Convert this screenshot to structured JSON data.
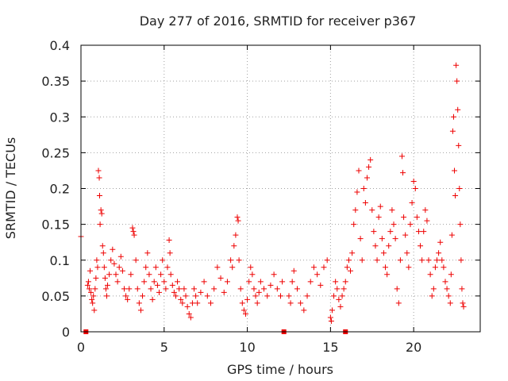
{
  "chart_data": {
    "type": "scatter",
    "title": "Day 277 of 2016, SRMTID for receiver p367",
    "xlabel": "GPS time / hours",
    "ylabel": "SRMTID / TECUs",
    "xlim": [
      0,
      24
    ],
    "ylim": [
      0,
      0.4
    ],
    "x_ticks": [
      0,
      5,
      10,
      15,
      20
    ],
    "y_ticks": [
      0,
      0.05,
      0.1,
      0.15,
      0.2,
      0.25,
      0.3,
      0.35,
      0.4
    ],
    "x_tick_labels": [
      "0",
      "5",
      "10",
      "15",
      "20"
    ],
    "y_tick_labels": [
      "0",
      "0.05",
      "0.1",
      "0.15",
      "0.2",
      "0.25",
      "0.3",
      "0.35",
      "0.4"
    ],
    "grid": true,
    "marker": "plus",
    "color": "#ee0000",
    "series": [
      {
        "name": "SRMTID",
        "points": [
          [
            0.0,
            0.133
          ],
          [
            0.4,
            0.065
          ],
          [
            0.45,
            0.07
          ],
          [
            0.5,
            0.06
          ],
          [
            0.55,
            0.085
          ],
          [
            0.6,
            0.055
          ],
          [
            0.65,
            0.045
          ],
          [
            0.7,
            0.04
          ],
          [
            0.75,
            0.05
          ],
          [
            0.8,
            0.03
          ],
          [
            0.85,
            0.06
          ],
          [
            0.9,
            0.075
          ],
          [
            0.95,
            0.1
          ],
          [
            1.0,
            0.09
          ],
          [
            1.05,
            0.225
          ],
          [
            1.1,
            0.215
          ],
          [
            1.12,
            0.19
          ],
          [
            1.15,
            0.15
          ],
          [
            1.2,
            0.17
          ],
          [
            1.25,
            0.165
          ],
          [
            1.3,
            0.12
          ],
          [
            1.35,
            0.11
          ],
          [
            1.4,
            0.09
          ],
          [
            1.45,
            0.075
          ],
          [
            1.5,
            0.06
          ],
          [
            1.55,
            0.05
          ],
          [
            1.6,
            0.065
          ],
          [
            1.7,
            0.08
          ],
          [
            1.8,
            0.1
          ],
          [
            1.9,
            0.115
          ],
          [
            2.0,
            0.095
          ],
          [
            2.1,
            0.08
          ],
          [
            2.2,
            0.07
          ],
          [
            2.3,
            0.09
          ],
          [
            2.4,
            0.105
          ],
          [
            2.5,
            0.085
          ],
          [
            2.6,
            0.06
          ],
          [
            2.7,
            0.05
          ],
          [
            2.8,
            0.045
          ],
          [
            2.9,
            0.06
          ],
          [
            3.0,
            0.08
          ],
          [
            3.1,
            0.145
          ],
          [
            3.15,
            0.14
          ],
          [
            3.2,
            0.135
          ],
          [
            3.3,
            0.1
          ],
          [
            3.4,
            0.06
          ],
          [
            3.5,
            0.04
          ],
          [
            3.6,
            0.03
          ],
          [
            3.7,
            0.05
          ],
          [
            3.8,
            0.07
          ],
          [
            3.9,
            0.09
          ],
          [
            4.0,
            0.11
          ],
          [
            4.1,
            0.08
          ],
          [
            4.2,
            0.06
          ],
          [
            4.3,
            0.045
          ],
          [
            4.4,
            0.07
          ],
          [
            4.5,
            0.09
          ],
          [
            4.6,
            0.065
          ],
          [
            4.7,
            0.055
          ],
          [
            4.8,
            0.08
          ],
          [
            4.9,
            0.1
          ],
          [
            5.0,
            0.07
          ],
          [
            5.1,
            0.06
          ],
          [
            5.2,
            0.09
          ],
          [
            5.3,
            0.128
          ],
          [
            5.35,
            0.11
          ],
          [
            5.4,
            0.08
          ],
          [
            5.5,
            0.065
          ],
          [
            5.6,
            0.055
          ],
          [
            5.7,
            0.05
          ],
          [
            5.8,
            0.07
          ],
          [
            5.9,
            0.06
          ],
          [
            6.0,
            0.045
          ],
          [
            6.1,
            0.04
          ],
          [
            6.2,
            0.06
          ],
          [
            6.3,
            0.05
          ],
          [
            6.4,
            0.035
          ],
          [
            6.5,
            0.025
          ],
          [
            6.6,
            0.02
          ],
          [
            6.7,
            0.04
          ],
          [
            6.8,
            0.06
          ],
          [
            6.9,
            0.05
          ],
          [
            7.0,
            0.04
          ],
          [
            7.2,
            0.055
          ],
          [
            7.4,
            0.07
          ],
          [
            7.6,
            0.05
          ],
          [
            7.8,
            0.04
          ],
          [
            8.0,
            0.06
          ],
          [
            8.2,
            0.09
          ],
          [
            8.4,
            0.075
          ],
          [
            8.6,
            0.055
          ],
          [
            8.8,
            0.07
          ],
          [
            9.0,
            0.1
          ],
          [
            9.1,
            0.09
          ],
          [
            9.2,
            0.12
          ],
          [
            9.3,
            0.135
          ],
          [
            9.4,
            0.16
          ],
          [
            9.45,
            0.155
          ],
          [
            9.5,
            0.1
          ],
          [
            9.6,
            0.06
          ],
          [
            9.7,
            0.04
          ],
          [
            9.8,
            0.03
          ],
          [
            9.9,
            0.025
          ],
          [
            10.0,
            0.045
          ],
          [
            10.1,
            0.07
          ],
          [
            10.2,
            0.09
          ],
          [
            10.3,
            0.08
          ],
          [
            10.4,
            0.06
          ],
          [
            10.5,
            0.05
          ],
          [
            10.6,
            0.04
          ],
          [
            10.7,
            0.055
          ],
          [
            10.8,
            0.07
          ],
          [
            11.0,
            0.06
          ],
          [
            11.2,
            0.05
          ],
          [
            11.4,
            0.065
          ],
          [
            11.6,
            0.08
          ],
          [
            11.8,
            0.06
          ],
          [
            12.0,
            0.05
          ],
          [
            12.1,
            0.07
          ],
          [
            12.5,
            0.05
          ],
          [
            12.6,
            0.04
          ],
          [
            12.7,
            0.07
          ],
          [
            12.8,
            0.085
          ],
          [
            13.0,
            0.06
          ],
          [
            13.2,
            0.04
          ],
          [
            13.4,
            0.03
          ],
          [
            13.6,
            0.05
          ],
          [
            13.8,
            0.07
          ],
          [
            14.0,
            0.09
          ],
          [
            14.2,
            0.08
          ],
          [
            14.4,
            0.065
          ],
          [
            14.6,
            0.09
          ],
          [
            14.8,
            0.1
          ],
          [
            15.0,
            0.02
          ],
          [
            15.05,
            0.015
          ],
          [
            15.1,
            0.03
          ],
          [
            15.2,
            0.05
          ],
          [
            15.3,
            0.07
          ],
          [
            15.4,
            0.06
          ],
          [
            15.5,
            0.045
          ],
          [
            15.6,
            0.035
          ],
          [
            15.7,
            0.05
          ],
          [
            15.8,
            0.06
          ],
          [
            15.9,
            0.07
          ],
          [
            16.0,
            0.09
          ],
          [
            16.1,
            0.1
          ],
          [
            16.2,
            0.085
          ],
          [
            16.3,
            0.11
          ],
          [
            16.4,
            0.15
          ],
          [
            16.5,
            0.17
          ],
          [
            16.6,
            0.195
          ],
          [
            16.7,
            0.225
          ],
          [
            16.8,
            0.13
          ],
          [
            16.9,
            0.1
          ],
          [
            17.0,
            0.2
          ],
          [
            17.1,
            0.18
          ],
          [
            17.2,
            0.215
          ],
          [
            17.3,
            0.23
          ],
          [
            17.4,
            0.24
          ],
          [
            17.5,
            0.17
          ],
          [
            17.6,
            0.14
          ],
          [
            17.7,
            0.12
          ],
          [
            17.8,
            0.1
          ],
          [
            17.9,
            0.16
          ],
          [
            18.0,
            0.175
          ],
          [
            18.1,
            0.13
          ],
          [
            18.2,
            0.11
          ],
          [
            18.3,
            0.09
          ],
          [
            18.4,
            0.08
          ],
          [
            18.5,
            0.12
          ],
          [
            18.6,
            0.14
          ],
          [
            18.7,
            0.17
          ],
          [
            18.8,
            0.15
          ],
          [
            18.9,
            0.13
          ],
          [
            19.0,
            0.06
          ],
          [
            19.1,
            0.04
          ],
          [
            19.2,
            0.1
          ],
          [
            19.3,
            0.245
          ],
          [
            19.35,
            0.222
          ],
          [
            19.4,
            0.16
          ],
          [
            19.5,
            0.135
          ],
          [
            19.6,
            0.11
          ],
          [
            19.7,
            0.09
          ],
          [
            19.8,
            0.15
          ],
          [
            19.9,
            0.18
          ],
          [
            20.0,
            0.21
          ],
          [
            20.1,
            0.2
          ],
          [
            20.2,
            0.16
          ],
          [
            20.3,
            0.14
          ],
          [
            20.4,
            0.12
          ],
          [
            20.5,
            0.1
          ],
          [
            20.6,
            0.14
          ],
          [
            20.7,
            0.17
          ],
          [
            20.8,
            0.155
          ],
          [
            20.9,
            0.1
          ],
          [
            21.0,
            0.08
          ],
          [
            21.1,
            0.05
          ],
          [
            21.2,
            0.06
          ],
          [
            21.3,
            0.09
          ],
          [
            21.4,
            0.1
          ],
          [
            21.5,
            0.11
          ],
          [
            21.6,
            0.125
          ],
          [
            21.7,
            0.1
          ],
          [
            21.8,
            0.09
          ],
          [
            21.9,
            0.07
          ],
          [
            22.0,
            0.06
          ],
          [
            22.1,
            0.05
          ],
          [
            22.2,
            0.04
          ],
          [
            22.25,
            0.08
          ],
          [
            22.3,
            0.135
          ],
          [
            22.35,
            0.28
          ],
          [
            22.4,
            0.3
          ],
          [
            22.45,
            0.225
          ],
          [
            22.5,
            0.19
          ],
          [
            22.55,
            0.372
          ],
          [
            22.6,
            0.35
          ],
          [
            22.65,
            0.31
          ],
          [
            22.7,
            0.26
          ],
          [
            22.75,
            0.2
          ],
          [
            22.8,
            0.15
          ],
          [
            22.85,
            0.1
          ],
          [
            22.9,
            0.06
          ],
          [
            22.95,
            0.04
          ],
          [
            23.0,
            0.035
          ]
        ]
      }
    ],
    "gap_markers_x": [
      0.3,
      12.2,
      15.9
    ]
  }
}
